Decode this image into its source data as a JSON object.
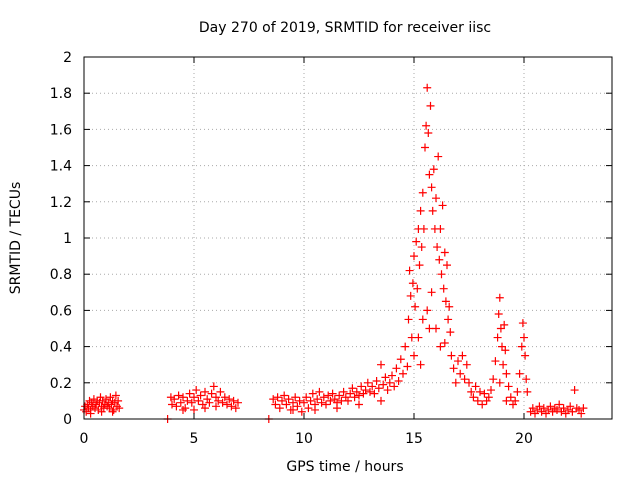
{
  "chart_data": {
    "type": "scatter",
    "title": "Day 270 of 2019, SRMTID for receiver iisc",
    "xlabel": "GPS time / hours",
    "ylabel": "SRMTID / TECUs",
    "xlim": [
      0,
      24
    ],
    "ylim": [
      0,
      2
    ],
    "xticks": [
      0,
      5,
      10,
      15,
      20
    ],
    "xtick_labels": [
      "0",
      "5",
      "10",
      "15",
      "20"
    ],
    "yticks": [
      0,
      0.2,
      0.4,
      0.6,
      0.8,
      1,
      1.2,
      1.4,
      1.6,
      1.8,
      2
    ],
    "ytick_labels": [
      "0",
      "0.2",
      "0.4",
      "0.6",
      "0.8",
      "1",
      "1.2",
      "1.4",
      "1.6",
      "1.8",
      "2"
    ],
    "grid": true,
    "marker": "+",
    "marker_color": "#ff0000",
    "series": [
      {
        "name": "SRMTID",
        "points": [
          [
            0.0,
            0.05
          ],
          [
            0.05,
            0.07
          ],
          [
            0.1,
            0.04
          ],
          [
            0.15,
            0.08
          ],
          [
            0.2,
            0.06
          ],
          [
            0.25,
            0.1
          ],
          [
            0.3,
            0.05
          ],
          [
            0.35,
            0.09
          ],
          [
            0.4,
            0.07
          ],
          [
            0.45,
            0.11
          ],
          [
            0.5,
            0.06
          ],
          [
            0.55,
            0.08
          ],
          [
            0.6,
            0.1
          ],
          [
            0.65,
            0.05
          ],
          [
            0.7,
            0.09
          ],
          [
            0.75,
            0.12
          ],
          [
            0.8,
            0.07
          ],
          [
            0.85,
            0.1
          ],
          [
            0.9,
            0.06
          ],
          [
            0.95,
            0.08
          ],
          [
            1.0,
            0.11
          ],
          [
            1.05,
            0.07
          ],
          [
            1.1,
            0.09
          ],
          [
            1.15,
            0.06
          ],
          [
            1.2,
            0.12
          ],
          [
            1.25,
            0.08
          ],
          [
            1.3,
            0.1
          ],
          [
            1.35,
            0.05
          ],
          [
            1.4,
            0.09
          ],
          [
            1.45,
            0.13
          ],
          [
            1.5,
            0.07
          ],
          [
            1.55,
            0.1
          ],
          [
            1.6,
            0.06
          ],
          [
            0.3,
            0.03
          ],
          [
            0.8,
            0.04
          ],
          [
            1.3,
            0.04
          ],
          [
            3.8,
            0.0
          ],
          [
            3.95,
            0.12
          ],
          [
            4.0,
            0.08
          ],
          [
            4.1,
            0.11
          ],
          [
            4.2,
            0.07
          ],
          [
            4.3,
            0.13
          ],
          [
            4.4,
            0.09
          ],
          [
            4.5,
            0.12
          ],
          [
            4.6,
            0.06
          ],
          [
            4.7,
            0.1
          ],
          [
            4.8,
            0.14
          ],
          [
            4.9,
            0.09
          ],
          [
            5.0,
            0.12
          ],
          [
            5.1,
            0.16
          ],
          [
            5.2,
            0.1
          ],
          [
            5.3,
            0.13
          ],
          [
            5.4,
            0.08
          ],
          [
            5.5,
            0.15
          ],
          [
            5.6,
            0.11
          ],
          [
            5.7,
            0.09
          ],
          [
            5.8,
            0.14
          ],
          [
            5.9,
            0.18
          ],
          [
            6.0,
            0.12
          ],
          [
            6.1,
            0.1
          ],
          [
            6.2,
            0.15
          ],
          [
            6.3,
            0.09
          ],
          [
            6.4,
            0.12
          ],
          [
            6.5,
            0.08
          ],
          [
            6.6,
            0.11
          ],
          [
            6.7,
            0.07
          ],
          [
            6.8,
            0.1
          ],
          [
            6.9,
            0.06
          ],
          [
            7.0,
            0.09
          ],
          [
            5.0,
            0.05
          ],
          [
            5.5,
            0.06
          ],
          [
            6.0,
            0.07
          ],
          [
            4.5,
            0.05
          ],
          [
            8.4,
            0.0
          ],
          [
            8.6,
            0.11
          ],
          [
            8.7,
            0.08
          ],
          [
            8.8,
            0.12
          ],
          [
            8.9,
            0.06
          ],
          [
            9.0,
            0.1
          ],
          [
            9.1,
            0.13
          ],
          [
            9.2,
            0.08
          ],
          [
            9.3,
            0.11
          ],
          [
            9.4,
            0.05
          ],
          [
            9.5,
            0.09
          ],
          [
            9.6,
            0.12
          ],
          [
            9.7,
            0.07
          ],
          [
            9.8,
            0.1
          ],
          [
            9.9,
            0.04
          ],
          [
            10.0,
            0.09
          ],
          [
            10.1,
            0.12
          ],
          [
            10.2,
            0.06
          ],
          [
            10.3,
            0.1
          ],
          [
            10.4,
            0.14
          ],
          [
            10.5,
            0.08
          ],
          [
            10.6,
            0.11
          ],
          [
            10.7,
            0.15
          ],
          [
            10.8,
            0.09
          ],
          [
            10.9,
            0.12
          ],
          [
            11.0,
            0.08
          ],
          [
            11.1,
            0.13
          ],
          [
            11.2,
            0.1
          ],
          [
            11.3,
            0.14
          ],
          [
            11.4,
            0.11
          ],
          [
            11.5,
            0.09
          ],
          [
            11.6,
            0.13
          ],
          [
            11.7,
            0.1
          ],
          [
            11.8,
            0.15
          ],
          [
            11.9,
            0.12
          ],
          [
            12.0,
            0.1
          ],
          [
            12.1,
            0.14
          ],
          [
            12.2,
            0.17
          ],
          [
            12.3,
            0.12
          ],
          [
            12.4,
            0.15
          ],
          [
            12.5,
            0.13
          ],
          [
            12.6,
            0.18
          ],
          [
            12.7,
            0.14
          ],
          [
            12.8,
            0.16
          ],
          [
            12.9,
            0.2
          ],
          [
            13.0,
            0.15
          ],
          [
            13.1,
            0.18
          ],
          [
            13.2,
            0.14
          ],
          [
            13.3,
            0.21
          ],
          [
            13.4,
            0.17
          ],
          [
            13.5,
            0.3
          ],
          [
            13.6,
            0.19
          ],
          [
            13.7,
            0.23
          ],
          [
            13.8,
            0.16
          ],
          [
            13.9,
            0.2
          ],
          [
            14.0,
            0.24
          ],
          [
            14.1,
            0.18
          ],
          [
            14.2,
            0.28
          ],
          [
            14.3,
            0.21
          ],
          [
            14.4,
            0.33
          ],
          [
            14.5,
            0.25
          ],
          [
            14.6,
            0.4
          ],
          [
            14.7,
            0.29
          ],
          [
            9.5,
            0.05
          ],
          [
            10.5,
            0.05
          ],
          [
            11.5,
            0.06
          ],
          [
            12.5,
            0.08
          ],
          [
            13.5,
            0.1
          ],
          [
            14.75,
            0.55
          ],
          [
            14.8,
            0.82
          ],
          [
            14.85,
            0.68
          ],
          [
            14.9,
            0.45
          ],
          [
            14.95,
            0.75
          ],
          [
            15.0,
            0.9
          ],
          [
            15.05,
            0.62
          ],
          [
            15.1,
            0.98
          ],
          [
            15.15,
            0.72
          ],
          [
            15.2,
            1.05
          ],
          [
            15.25,
            0.85
          ],
          [
            15.3,
            1.15
          ],
          [
            15.35,
            0.95
          ],
          [
            15.4,
            1.25
          ],
          [
            15.45,
            1.05
          ],
          [
            15.5,
            1.5
          ],
          [
            15.55,
            1.62
          ],
          [
            15.6,
            1.83
          ],
          [
            15.65,
            1.58
          ],
          [
            15.7,
            1.35
          ],
          [
            15.75,
            1.73
          ],
          [
            15.8,
            1.28
          ],
          [
            15.85,
            1.15
          ],
          [
            15.9,
            1.38
          ],
          [
            15.95,
            1.05
          ],
          [
            16.0,
            1.22
          ],
          [
            16.05,
            0.95
          ],
          [
            16.1,
            1.45
          ],
          [
            16.15,
            0.88
          ],
          [
            16.2,
            1.05
          ],
          [
            16.25,
            0.8
          ],
          [
            16.3,
            1.18
          ],
          [
            16.35,
            0.72
          ],
          [
            16.4,
            0.92
          ],
          [
            16.45,
            0.65
          ],
          [
            16.5,
            0.85
          ],
          [
            16.55,
            0.55
          ],
          [
            16.6,
            0.62
          ],
          [
            16.65,
            0.48
          ],
          [
            16.7,
            0.35
          ],
          [
            15.0,
            0.35
          ],
          [
            15.2,
            0.45
          ],
          [
            15.4,
            0.55
          ],
          [
            15.6,
            0.6
          ],
          [
            15.8,
            0.7
          ],
          [
            16.0,
            0.5
          ],
          [
            16.2,
            0.4
          ],
          [
            16.4,
            0.42
          ],
          [
            15.3,
            0.3
          ],
          [
            15.7,
            0.5
          ],
          [
            16.8,
            0.28
          ],
          [
            16.9,
            0.2
          ],
          [
            17.0,
            0.32
          ],
          [
            17.1,
            0.25
          ],
          [
            17.2,
            0.35
          ],
          [
            17.3,
            0.22
          ],
          [
            17.4,
            0.3
          ],
          [
            17.5,
            0.2
          ],
          [
            17.6,
            0.15
          ],
          [
            17.7,
            0.12
          ],
          [
            17.8,
            0.18
          ],
          [
            17.9,
            0.1
          ],
          [
            18.0,
            0.15
          ],
          [
            18.1,
            0.08
          ],
          [
            18.2,
            0.14
          ],
          [
            18.3,
            0.1
          ],
          [
            18.4,
            0.12
          ],
          [
            18.5,
            0.16
          ],
          [
            18.6,
            0.22
          ],
          [
            18.7,
            0.32
          ],
          [
            18.8,
            0.45
          ],
          [
            18.85,
            0.58
          ],
          [
            18.9,
            0.67
          ],
          [
            18.95,
            0.5
          ],
          [
            19.0,
            0.4
          ],
          [
            19.05,
            0.3
          ],
          [
            19.1,
            0.52
          ],
          [
            19.15,
            0.38
          ],
          [
            19.2,
            0.25
          ],
          [
            19.3,
            0.18
          ],
          [
            19.4,
            0.12
          ],
          [
            19.5,
            0.08
          ],
          [
            19.6,
            0.1
          ],
          [
            19.7,
            0.15
          ],
          [
            19.8,
            0.25
          ],
          [
            19.9,
            0.4
          ],
          [
            19.95,
            0.53
          ],
          [
            20.0,
            0.45
          ],
          [
            20.05,
            0.35
          ],
          [
            20.1,
            0.22
          ],
          [
            20.15,
            0.15
          ],
          [
            18.9,
            0.2
          ],
          [
            19.2,
            0.1
          ],
          [
            20.3,
            0.04
          ],
          [
            20.4,
            0.06
          ],
          [
            20.5,
            0.03
          ],
          [
            20.6,
            0.05
          ],
          [
            20.7,
            0.07
          ],
          [
            20.8,
            0.04
          ],
          [
            20.9,
            0.06
          ],
          [
            21.0,
            0.03
          ],
          [
            21.1,
            0.05
          ],
          [
            21.2,
            0.07
          ],
          [
            21.3,
            0.04
          ],
          [
            21.4,
            0.06
          ],
          [
            21.5,
            0.05
          ],
          [
            21.6,
            0.08
          ],
          [
            21.7,
            0.04
          ],
          [
            21.8,
            0.06
          ],
          [
            21.9,
            0.03
          ],
          [
            22.0,
            0.05
          ],
          [
            22.1,
            0.07
          ],
          [
            22.2,
            0.04
          ],
          [
            22.3,
            0.16
          ],
          [
            22.4,
            0.06
          ],
          [
            22.5,
            0.05
          ],
          [
            22.6,
            0.03
          ],
          [
            22.7,
            0.06
          ]
        ]
      }
    ]
  }
}
